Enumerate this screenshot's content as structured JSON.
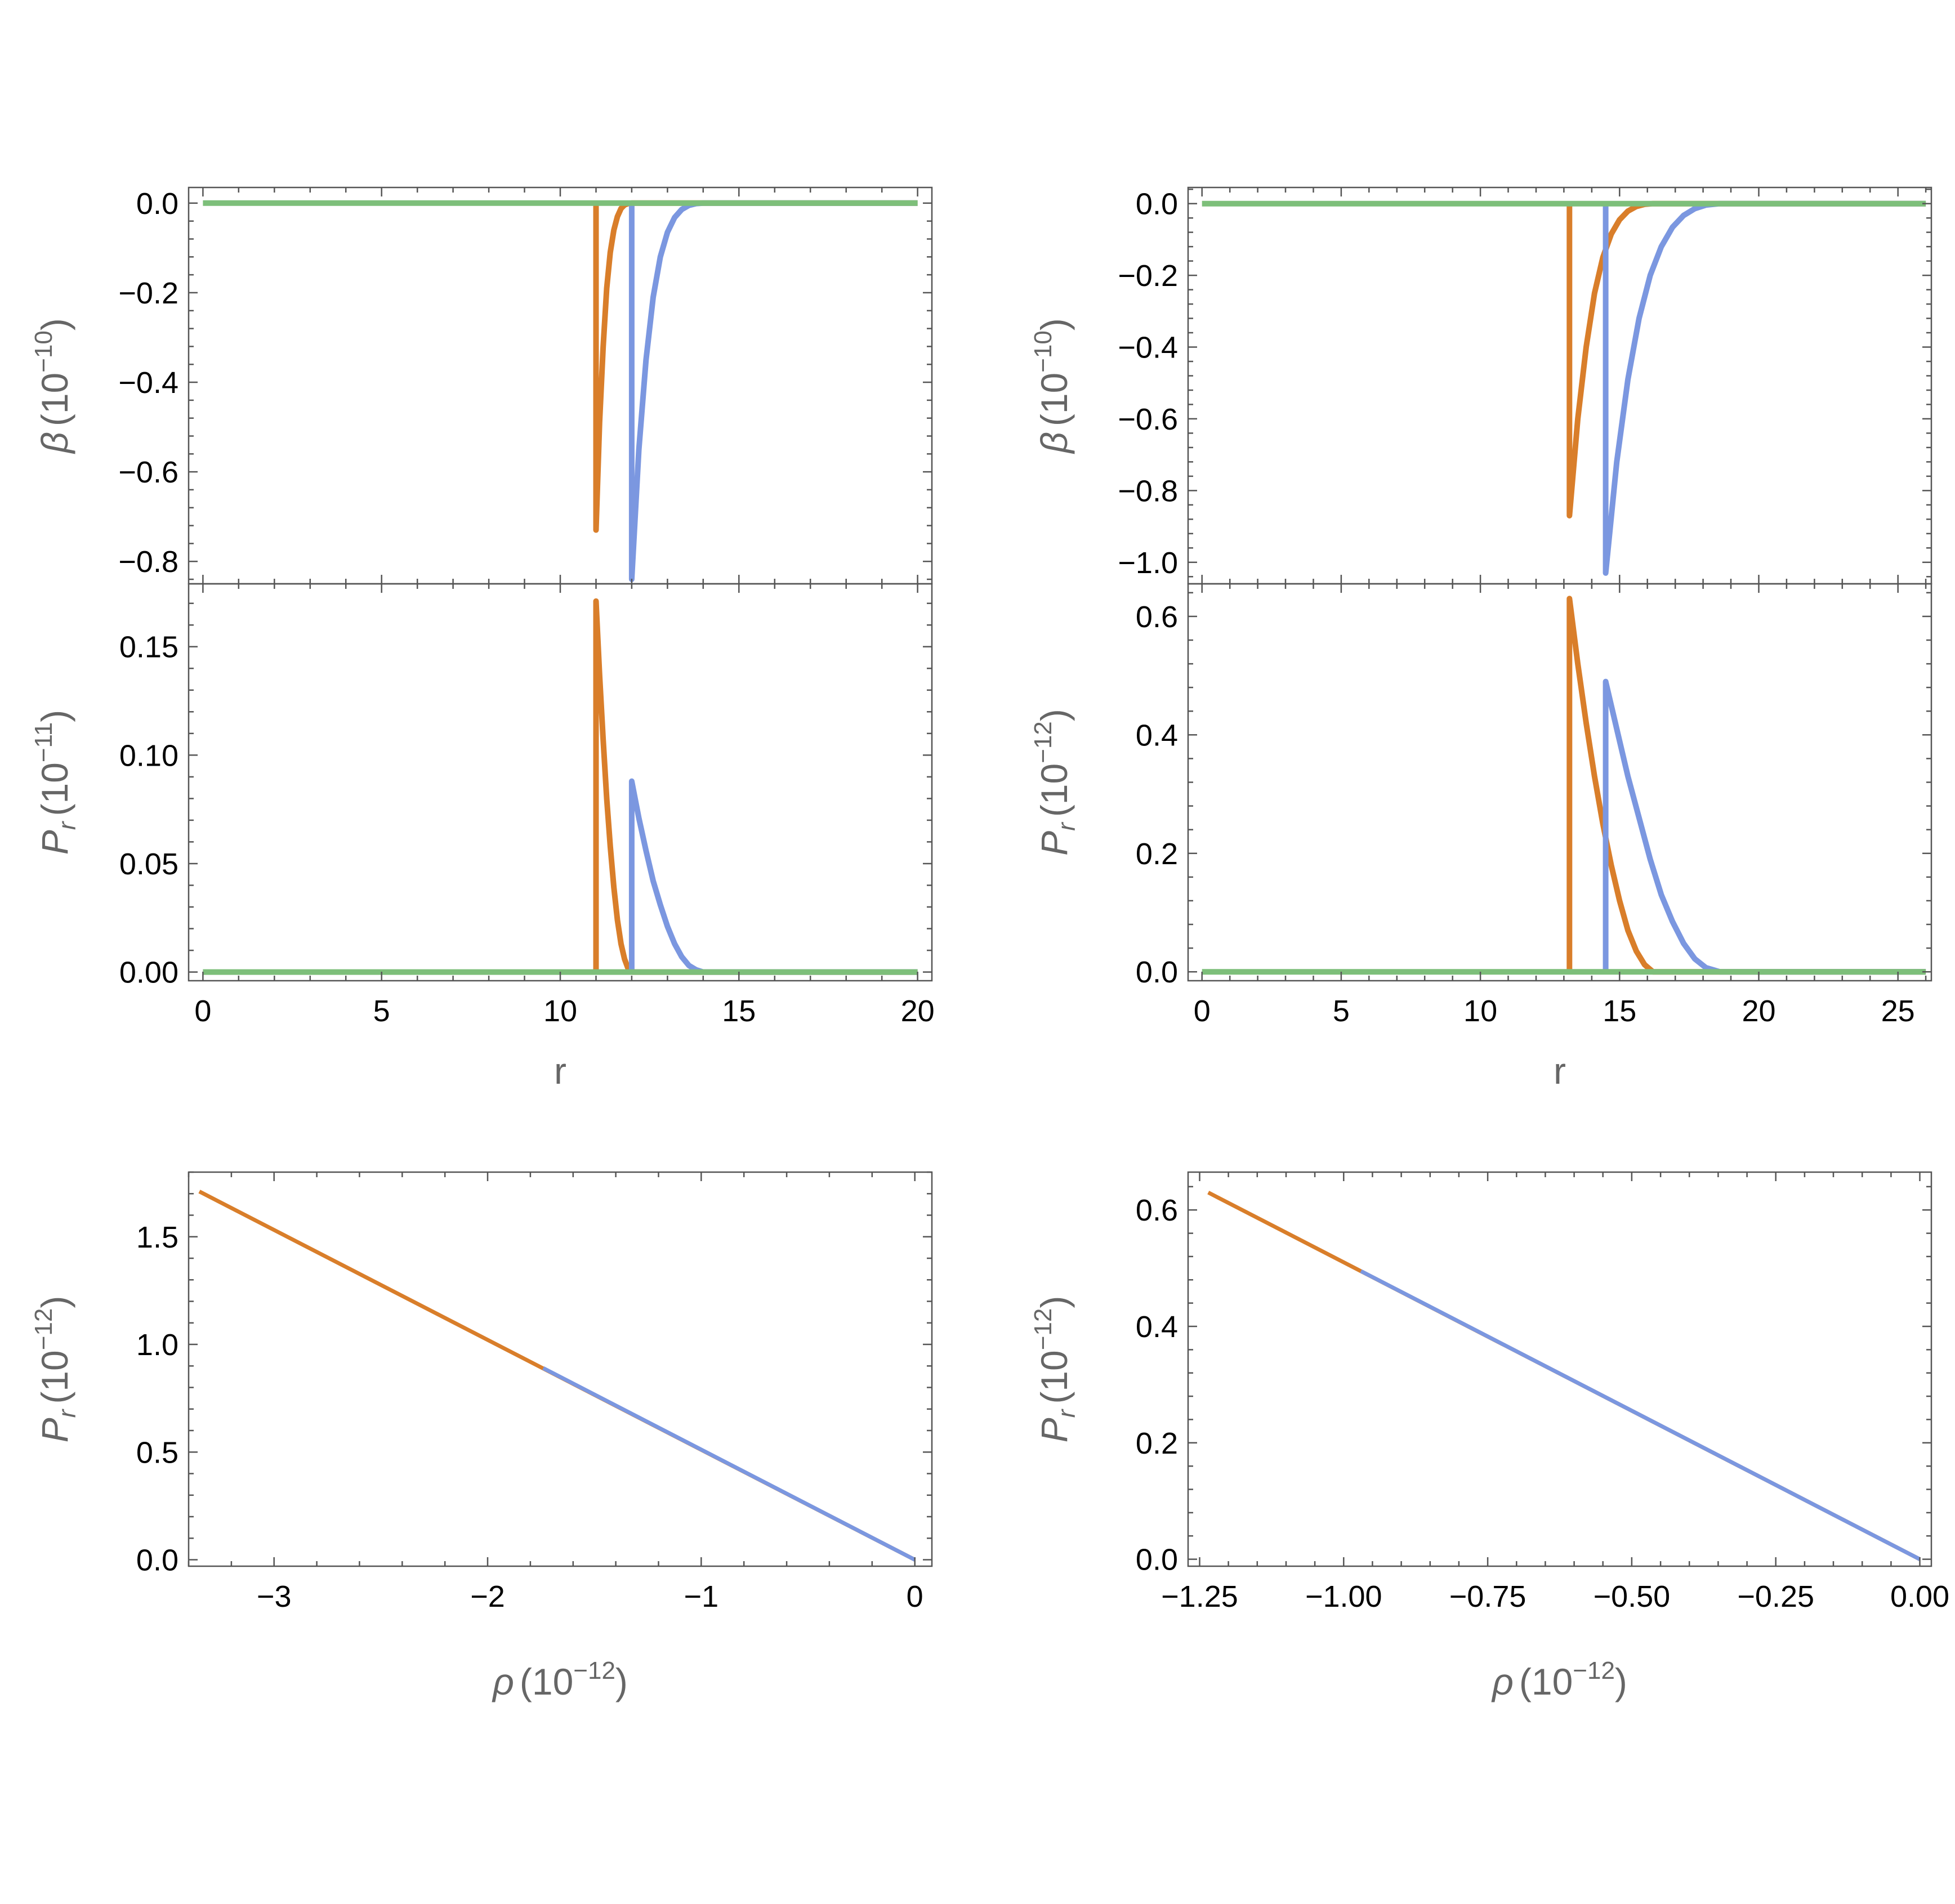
{
  "colors": {
    "blue": "#7B97E0",
    "orange": "#D97E2A",
    "green": "#7DBF7A"
  },
  "chart_data": [
    {
      "id": "beta-left",
      "type": "line",
      "ylabel": {
        "main": "β",
        "unit_base": "(10",
        "unit_exp": "−10",
        "unit_close": ")"
      },
      "xlim": [
        -0.4,
        20.4
      ],
      "ylim": [
        -0.85,
        0.035
      ],
      "yticks": [
        0.0,
        -0.2,
        -0.4,
        -0.6,
        -0.8
      ],
      "ytick_labels": [
        "0.0",
        "−0.2",
        "−0.4",
        "−0.6",
        "−0.8"
      ],
      "series": [
        {
          "color_key": "orange",
          "x": [
            11.0,
            11.0,
            11.1,
            11.2,
            11.3,
            11.4,
            11.5,
            11.6,
            11.7,
            11.8,
            11.9,
            12.0,
            20.0
          ],
          "y": [
            0.0,
            -0.73,
            -0.49,
            -0.32,
            -0.19,
            -0.11,
            -0.06,
            -0.03,
            -0.012,
            -0.004,
            -0.001,
            0.0,
            0.0
          ]
        },
        {
          "color_key": "blue",
          "x": [
            12.0,
            12.0,
            12.2,
            12.4,
            12.6,
            12.8,
            13.0,
            13.2,
            13.4,
            13.6,
            13.8,
            14.0,
            20.0
          ],
          "y": [
            0.0,
            -0.84,
            -0.55,
            -0.35,
            -0.21,
            -0.12,
            -0.065,
            -0.032,
            -0.014,
            -0.005,
            -0.001,
            0.0,
            0.0
          ]
        },
        {
          "color_key": "green",
          "x": [
            0.0,
            20.0
          ],
          "y": [
            0.0,
            0.0
          ]
        }
      ]
    },
    {
      "id": "pr-left",
      "type": "line",
      "ylabel": {
        "main": "P",
        "main_sub": "r",
        "unit_base": "(10",
        "unit_exp": "−11",
        "unit_close": ")"
      },
      "xlabel": "r",
      "xlim": [
        -0.4,
        20.4
      ],
      "ylim": [
        -0.004,
        0.179
      ],
      "xticks": [
        0,
        5,
        10,
        15,
        20
      ],
      "xtick_labels": [
        "0",
        "5",
        "10",
        "15",
        "20"
      ],
      "yticks": [
        0.0,
        0.05,
        0.1,
        0.15
      ],
      "ytick_labels": [
        "0.00",
        "0.05",
        "0.10",
        "0.15"
      ],
      "series": [
        {
          "color_key": "orange",
          "x": [
            11.0,
            11.0,
            11.1,
            11.2,
            11.3,
            11.4,
            11.5,
            11.6,
            11.7,
            11.8,
            11.9,
            12.0,
            20.0
          ],
          "y": [
            0.0,
            0.171,
            0.137,
            0.107,
            0.08,
            0.058,
            0.039,
            0.024,
            0.013,
            0.006,
            0.0015,
            0.0,
            0.0
          ]
        },
        {
          "color_key": "blue",
          "x": [
            12.0,
            12.0,
            12.2,
            12.4,
            12.6,
            12.8,
            13.0,
            13.2,
            13.4,
            13.6,
            13.8,
            14.0,
            20.0
          ],
          "y": [
            0.0,
            0.088,
            0.071,
            0.056,
            0.042,
            0.031,
            0.021,
            0.013,
            0.007,
            0.003,
            0.001,
            0.0,
            0.0
          ]
        },
        {
          "color_key": "green",
          "x": [
            0.0,
            20.0
          ],
          "y": [
            0.0,
            0.0
          ]
        }
      ]
    },
    {
      "id": "beta-right",
      "type": "line",
      "ylabel": {
        "main": "β",
        "unit_base": "(10",
        "unit_exp": "−10",
        "unit_close": ")"
      },
      "xlim": [
        -0.5,
        26.2
      ],
      "ylim": [
        -1.06,
        0.045
      ],
      "yticks": [
        0.0,
        -0.2,
        -0.4,
        -0.6,
        -0.8,
        -1.0
      ],
      "ytick_labels": [
        "0.0",
        "−0.2",
        "−0.4",
        "−0.6",
        "−0.8",
        "−1.0"
      ],
      "series": [
        {
          "color_key": "orange",
          "x": [
            13.2,
            13.2,
            13.5,
            13.8,
            14.1,
            14.4,
            14.7,
            15.0,
            15.3,
            15.6,
            15.9,
            16.2,
            26.0
          ],
          "y": [
            0.0,
            -0.87,
            -0.6,
            -0.4,
            -0.25,
            -0.15,
            -0.085,
            -0.045,
            -0.021,
            -0.008,
            -0.002,
            0.0,
            0.0
          ]
        },
        {
          "color_key": "blue",
          "x": [
            14.5,
            14.5,
            14.9,
            15.3,
            15.7,
            16.1,
            16.5,
            16.9,
            17.3,
            17.7,
            18.1,
            18.6,
            26.0
          ],
          "y": [
            0.0,
            -1.03,
            -0.72,
            -0.49,
            -0.32,
            -0.2,
            -0.12,
            -0.066,
            -0.033,
            -0.014,
            -0.004,
            0.0,
            0.0
          ]
        },
        {
          "color_key": "green",
          "x": [
            0.0,
            26.0
          ],
          "y": [
            0.0,
            0.0
          ]
        }
      ]
    },
    {
      "id": "pr-right",
      "type": "line",
      "ylabel": {
        "main": "P",
        "main_sub": "r",
        "unit_base": "(10",
        "unit_exp": "−12",
        "unit_close": ")"
      },
      "xlabel": "r",
      "xlim": [
        -0.5,
        26.2
      ],
      "ylim": [
        -0.015,
        0.655
      ],
      "xticks": [
        0,
        5,
        10,
        15,
        20,
        25
      ],
      "xtick_labels": [
        "0",
        "5",
        "10",
        "15",
        "20",
        "25"
      ],
      "yticks": [
        0.0,
        0.2,
        0.4,
        0.6
      ],
      "ytick_labels": [
        "0.0",
        "0.2",
        "0.4",
        "0.6"
      ],
      "series": [
        {
          "color_key": "orange",
          "x": [
            13.2,
            13.2,
            13.5,
            13.8,
            14.1,
            14.4,
            14.7,
            15.0,
            15.3,
            15.6,
            15.9,
            16.2,
            26.0
          ],
          "y": [
            0.0,
            0.63,
            0.52,
            0.42,
            0.33,
            0.25,
            0.18,
            0.12,
            0.07,
            0.035,
            0.012,
            0.0,
            0.0
          ]
        },
        {
          "color_key": "blue",
          "x": [
            14.5,
            14.5,
            14.9,
            15.3,
            15.7,
            16.1,
            16.5,
            16.9,
            17.3,
            17.7,
            18.1,
            18.6,
            26.0
          ],
          "y": [
            0.0,
            0.49,
            0.41,
            0.33,
            0.26,
            0.19,
            0.13,
            0.085,
            0.048,
            0.022,
            0.007,
            0.0,
            0.0
          ]
        },
        {
          "color_key": "green",
          "x": [
            0.0,
            26.0
          ],
          "y": [
            0.0,
            0.0
          ]
        }
      ]
    },
    {
      "id": "eos-left",
      "type": "line",
      "ylabel": {
        "main": "P",
        "main_sub": "r",
        "unit_base": "(10",
        "unit_exp": "−12",
        "unit_close": ")"
      },
      "xlabel": {
        "main": "ρ",
        "unit_base": "(10",
        "unit_exp": "−12",
        "unit_close": ")"
      },
      "xlim": [
        -3.4,
        0.08
      ],
      "ylim": [
        -0.03,
        1.8
      ],
      "xticks": [
        -3,
        -2,
        -1,
        0
      ],
      "xtick_labels": [
        "−3",
        "−2",
        "−1",
        "0"
      ],
      "yticks": [
        0.0,
        0.5,
        1.0,
        1.5
      ],
      "ytick_labels": [
        "0.0",
        "0.5",
        "1.0",
        "1.5"
      ],
      "series": [
        {
          "color_key": "orange",
          "x": [
            -3.35,
            0.0
          ],
          "y": [
            1.71,
            0.0
          ]
        },
        {
          "color_key": "blue",
          "x": [
            -1.74,
            0.0
          ],
          "y": [
            0.89,
            0.0
          ]
        }
      ]
    },
    {
      "id": "eos-right",
      "type": "line",
      "ylabel": {
        "main": "P",
        "main_sub": "r",
        "unit_base": "(10",
        "unit_exp": "−12",
        "unit_close": ")"
      },
      "xlabel": {
        "main": "ρ",
        "unit_base": "(10",
        "unit_exp": "−12",
        "unit_close": ")"
      },
      "xlim": [
        -1.27,
        0.02
      ],
      "ylim": [
        -0.012,
        0.665
      ],
      "xticks": [
        -1.25,
        -1.0,
        -0.75,
        -0.5,
        -0.25,
        0.0
      ],
      "xtick_labels": [
        "−1.25",
        "−1.00",
        "−0.75",
        "−0.50",
        "−0.25",
        "0.00"
      ],
      "yticks": [
        0.0,
        0.2,
        0.4,
        0.6
      ],
      "ytick_labels": [
        "0.0",
        "0.2",
        "0.4",
        "0.6"
      ],
      "series": [
        {
          "color_key": "orange",
          "x": [
            -1.235,
            0.0
          ],
          "y": [
            0.63,
            0.0
          ]
        },
        {
          "color_key": "blue",
          "x": [
            -0.97,
            0.0
          ],
          "y": [
            0.495,
            0.0
          ]
        }
      ]
    }
  ]
}
